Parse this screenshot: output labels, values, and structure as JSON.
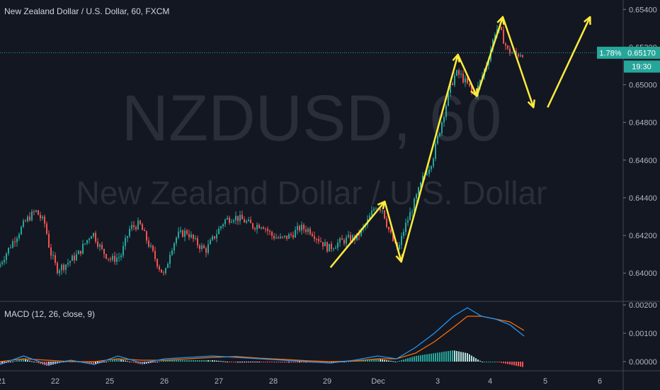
{
  "chart_data": {
    "type": "candlestick",
    "title": "New Zealand Dollar / U.S. Dollar, 60, FXCM",
    "watermark_symbol": "NZDUSD, 60",
    "watermark_name": "New Zealand Dollar / U.S. Dollar",
    "x_ticks": [
      "21",
      "22",
      "25",
      "26",
      "27",
      "28",
      "29",
      "Dec",
      "3",
      "4",
      "5",
      "6"
    ],
    "y_ticks": [
      "0.65400",
      "0.65200",
      "0.65000",
      "0.64800",
      "0.64600",
      "0.64400",
      "0.64200",
      "0.64000"
    ],
    "ylim": [
      0.6385,
      0.6545
    ],
    "last_price": {
      "change": "1.78%",
      "price": "0.65170",
      "countdown": "19:30",
      "value": 0.6517
    },
    "up_color": "#26a69a",
    "down_color": "#ef5350",
    "price_series": [
      {
        "t": 0,
        "p": 0.6403
      },
      {
        "t": 3,
        "p": 0.6416
      },
      {
        "t": 6,
        "p": 0.6428
      },
      {
        "t": 8,
        "p": 0.6433
      },
      {
        "t": 10,
        "p": 0.6426
      },
      {
        "t": 11,
        "p": 0.6412
      },
      {
        "t": 12.5,
        "p": 0.6402
      },
      {
        "t": 14,
        "p": 0.6404
      },
      {
        "t": 17,
        "p": 0.641
      },
      {
        "t": 19,
        "p": 0.6418
      },
      {
        "t": 20,
        "p": 0.6422
      },
      {
        "t": 22,
        "p": 0.6412
      },
      {
        "t": 24,
        "p": 0.6407
      },
      {
        "t": 26,
        "p": 0.6409
      },
      {
        "t": 28,
        "p": 0.6424
      },
      {
        "t": 30,
        "p": 0.6426
      },
      {
        "t": 32,
        "p": 0.6415
      },
      {
        "t": 34,
        "p": 0.6404
      },
      {
        "t": 35.3,
        "p": 0.6398
      },
      {
        "t": 36.5,
        "p": 0.6412
      },
      {
        "t": 38,
        "p": 0.642
      },
      {
        "t": 40,
        "p": 0.6422
      },
      {
        "t": 42,
        "p": 0.6416
      },
      {
        "t": 44,
        "p": 0.6412
      },
      {
        "t": 46,
        "p": 0.642
      },
      {
        "t": 48,
        "p": 0.6428
      },
      {
        "t": 50,
        "p": 0.643
      },
      {
        "t": 52,
        "p": 0.6428
      },
      {
        "t": 54,
        "p": 0.6425
      },
      {
        "t": 56,
        "p": 0.6426
      },
      {
        "t": 58,
        "p": 0.642
      },
      {
        "t": 60,
        "p": 0.6418
      },
      {
        "t": 62,
        "p": 0.642
      },
      {
        "t": 64,
        "p": 0.6424
      },
      {
        "t": 66,
        "p": 0.6423
      },
      {
        "t": 68,
        "p": 0.6418
      },
      {
        "t": 70,
        "p": 0.6413
      },
      {
        "t": 72,
        "p": 0.6416
      },
      {
        "t": 74,
        "p": 0.6418
      },
      {
        "t": 76,
        "p": 0.6419
      },
      {
        "t": 78,
        "p": 0.6426
      },
      {
        "t": 80,
        "p": 0.6436
      },
      {
        "t": 81.5,
        "p": 0.6434
      },
      {
        "t": 82.5,
        "p": 0.6425
      },
      {
        "t": 84,
        "p": 0.6415
      },
      {
        "t": 84.8,
        "p": 0.6412
      },
      {
        "t": 86,
        "p": 0.6423
      },
      {
        "t": 88,
        "p": 0.6436
      },
      {
        "t": 90,
        "p": 0.645
      },
      {
        "t": 92,
        "p": 0.646
      },
      {
        "t": 94,
        "p": 0.648
      },
      {
        "t": 96,
        "p": 0.65
      },
      {
        "t": 97,
        "p": 0.6506
      },
      {
        "t": 98,
        "p": 0.6505
      },
      {
        "t": 100,
        "p": 0.6498
      },
      {
        "t": 101,
        "p": 0.6494
      },
      {
        "t": 102.5,
        "p": 0.6504
      },
      {
        "t": 104,
        "p": 0.6515
      },
      {
        "t": 105.5,
        "p": 0.653
      },
      {
        "t": 106.5,
        "p": 0.6528
      },
      {
        "t": 108,
        "p": 0.6518
      },
      {
        "t": 110,
        "p": 0.6516
      },
      {
        "t": 111,
        "p": 0.6517
      }
    ],
    "macd": {
      "label": "MACD (12, 26, close, 9)",
      "ylim": [
        -0.0003,
        0.0021
      ],
      "y_ticks": [
        "0.00200",
        "0.00100",
        "0.00000"
      ],
      "macd_color": "#2196f3",
      "signal_color": "#ff6d00",
      "macd_series": [
        {
          "t": 0,
          "v": -0.0001
        },
        {
          "t": 5,
          "v": 0.0002
        },
        {
          "t": 10,
          "v": -0.0001
        },
        {
          "t": 15,
          "v": 5e-05
        },
        {
          "t": 20,
          "v": -0.0001
        },
        {
          "t": 25,
          "v": 0.0002
        },
        {
          "t": 30,
          "v": -5e-05
        },
        {
          "t": 35,
          "v": 0.0001
        },
        {
          "t": 40,
          "v": 0.00015
        },
        {
          "t": 45,
          "v": 0.0002
        },
        {
          "t": 50,
          "v": 0.00015
        },
        {
          "t": 55,
          "v": 0.0001
        },
        {
          "t": 60,
          "v": 5e-05
        },
        {
          "t": 65,
          "v": 0.0
        },
        {
          "t": 70,
          "v": -5e-05
        },
        {
          "t": 75,
          "v": 5e-05
        },
        {
          "t": 80,
          "v": 0.0002
        },
        {
          "t": 84,
          "v": 0.0001
        },
        {
          "t": 88,
          "v": 0.0005
        },
        {
          "t": 92,
          "v": 0.001
        },
        {
          "t": 96,
          "v": 0.0016
        },
        {
          "t": 99,
          "v": 0.0019
        },
        {
          "t": 102,
          "v": 0.0016
        },
        {
          "t": 105,
          "v": 0.0015
        },
        {
          "t": 108,
          "v": 0.0013
        },
        {
          "t": 111,
          "v": 0.0009
        }
      ],
      "signal_series": [
        {
          "t": 0,
          "v": 0.0
        },
        {
          "t": 5,
          "v": 0.0001
        },
        {
          "t": 10,
          "v": 5e-05
        },
        {
          "t": 15,
          "v": 0.0
        },
        {
          "t": 20,
          "v": 0.0
        },
        {
          "t": 25,
          "v": 0.0001
        },
        {
          "t": 30,
          "v": 5e-05
        },
        {
          "t": 35,
          "v": 5e-05
        },
        {
          "t": 40,
          "v": 0.0001
        },
        {
          "t": 45,
          "v": 0.00015
        },
        {
          "t": 50,
          "v": 0.00018
        },
        {
          "t": 55,
          "v": 0.00012
        },
        {
          "t": 60,
          "v": 8e-05
        },
        {
          "t": 65,
          "v": 3e-05
        },
        {
          "t": 70,
          "v": 0.0
        },
        {
          "t": 75,
          "v": 2e-05
        },
        {
          "t": 80,
          "v": 0.0001
        },
        {
          "t": 84,
          "v": 0.0001
        },
        {
          "t": 88,
          "v": 0.0003
        },
        {
          "t": 92,
          "v": 0.0007
        },
        {
          "t": 96,
          "v": 0.0012
        },
        {
          "t": 99,
          "v": 0.0016
        },
        {
          "t": 102,
          "v": 0.0016
        },
        {
          "t": 105,
          "v": 0.0015
        },
        {
          "t": 108,
          "v": 0.0014
        },
        {
          "t": 111,
          "v": 0.0011
        }
      ]
    },
    "annotations": [
      {
        "type": "zigzag-arrow",
        "color": "#ffeb3b",
        "points": [
          {
            "t": 70,
            "p": 0.6403
          },
          {
            "t": 81.5,
            "p": 0.6438
          },
          {
            "t": 85,
            "p": 0.6406
          },
          {
            "t": 97,
            "p": 0.6516
          },
          {
            "t": 101,
            "p": 0.6494
          },
          {
            "t": 106.5,
            "p": 0.6536
          },
          {
            "t": 113,
            "p": 0.6488
          }
        ]
      },
      {
        "type": "arrow",
        "color": "#ffeb3b",
        "points": [
          {
            "t": 116,
            "p": 0.6488
          },
          {
            "t": 125,
            "p": 0.6536
          }
        ]
      }
    ]
  }
}
